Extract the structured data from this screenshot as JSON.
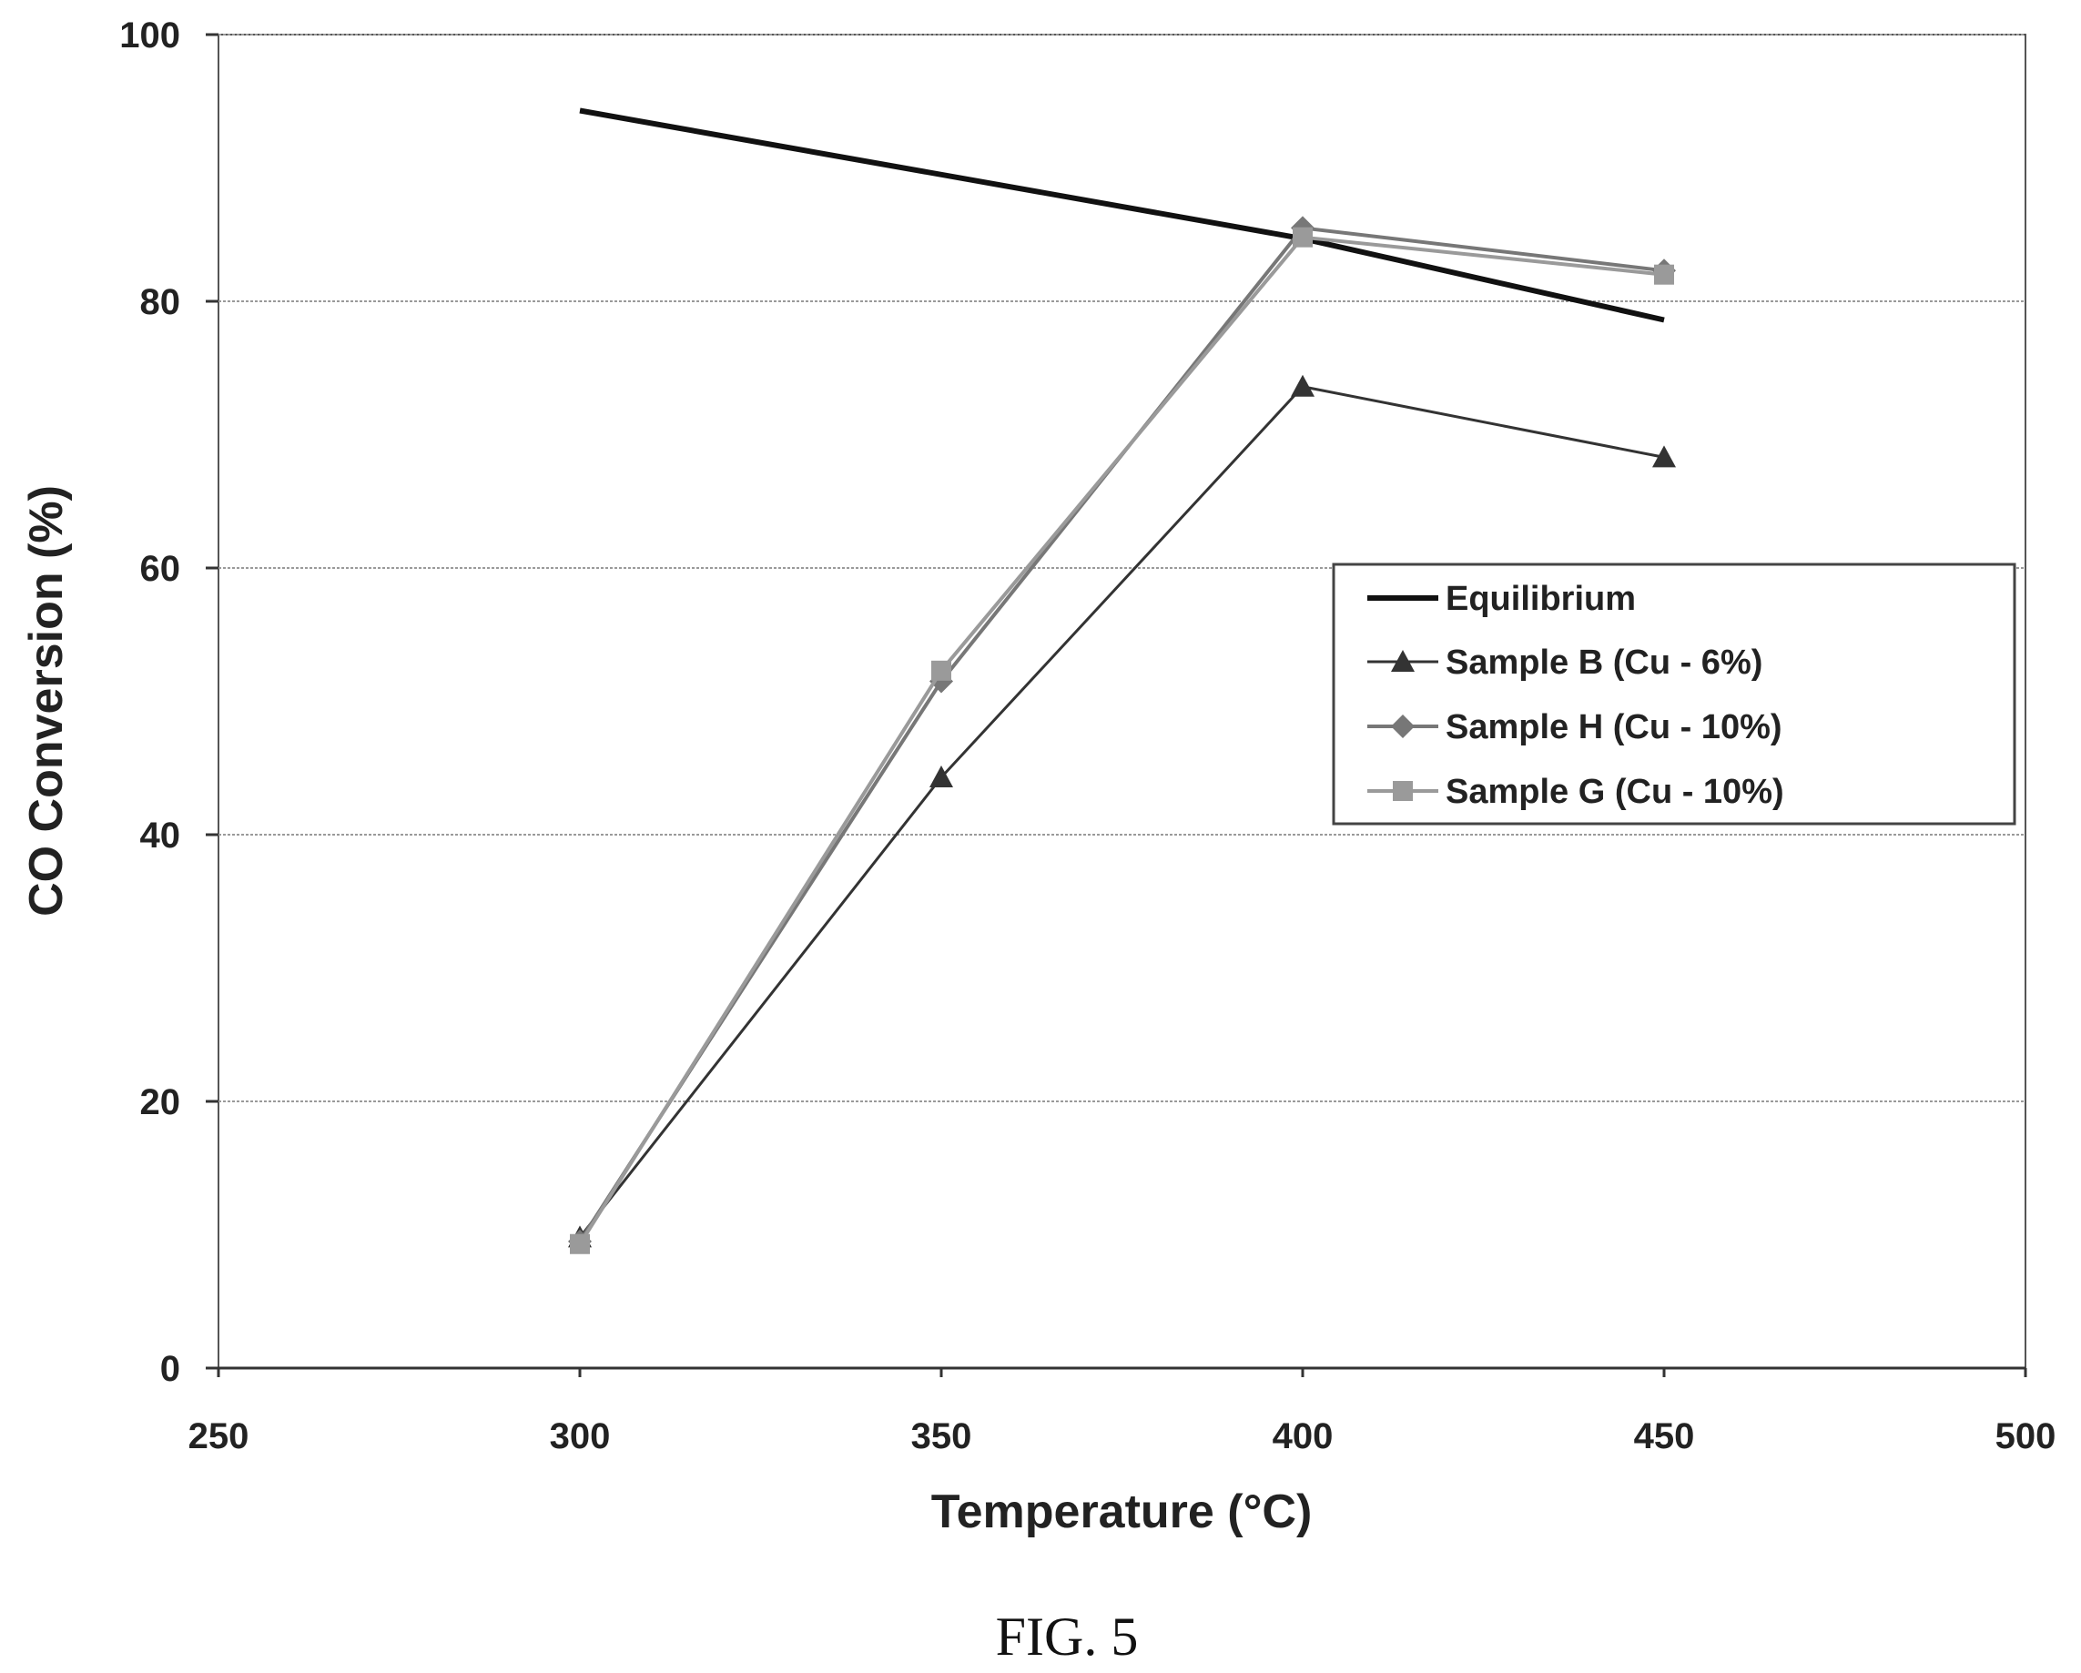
{
  "figure_label": "FIG. 5",
  "chart_data": {
    "type": "line",
    "xlabel": "Temperature (°C)",
    "ylabel": "CO Conversion (%)",
    "xlim": [
      250,
      500
    ],
    "ylim": [
      0,
      100
    ],
    "x_ticks": [
      250,
      300,
      350,
      400,
      450,
      500
    ],
    "y_ticks": [
      0,
      20,
      40,
      60,
      80,
      100
    ],
    "grid": "horizontal",
    "legend_position": "right-center",
    "series": [
      {
        "name": "Equilibrium",
        "x": [
          300,
          400,
          450
        ],
        "y": [
          94.3,
          84.7,
          78.6
        ],
        "marker": "none",
        "color": "#111111",
        "stroke_width": 6
      },
      {
        "name": "Sample B (Cu - 6%)",
        "x": [
          300,
          350,
          400,
          450
        ],
        "y": [
          9.8,
          44.3,
          73.6,
          68.3
        ],
        "marker": "triangle",
        "color": "#333333",
        "stroke_width": 3
      },
      {
        "name": "Sample H (Cu - 10%)",
        "x": [
          300,
          350,
          400,
          450
        ],
        "y": [
          9.5,
          51.5,
          85.5,
          82.3
        ],
        "marker": "diamond",
        "color": "#777777",
        "stroke_width": 4
      },
      {
        "name": "Sample G (Cu - 10%)",
        "x": [
          300,
          350,
          400,
          450
        ],
        "y": [
          9.3,
          52.3,
          84.8,
          82.0
        ],
        "marker": "square",
        "color": "#9a9a9a",
        "stroke_width": 4
      }
    ]
  }
}
